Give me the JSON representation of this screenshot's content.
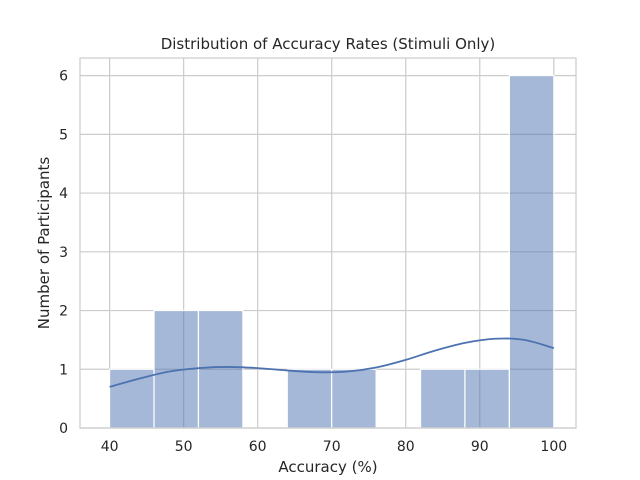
{
  "chart_data": {
    "type": "bar",
    "title": "Distribution of Accuracy Rates (Stimuli Only)",
    "xlabel": "Accuracy (%)",
    "ylabel": "Number of Participants",
    "xlim": [
      36,
      103
    ],
    "ylim": [
      0,
      6.3
    ],
    "xticks": [
      "40",
      "50",
      "60",
      "70",
      "80",
      "90",
      "100"
    ],
    "yticks": [
      "0",
      "1",
      "2",
      "3",
      "4",
      "5",
      "6"
    ],
    "grid": true,
    "bar_color": "#4c72b0",
    "kde_color": "#4c72b0",
    "histogram": {
      "bin_edges": [
        40,
        46,
        52,
        58,
        64,
        70,
        76,
        82,
        88,
        94,
        100
      ],
      "counts": [
        1,
        2,
        2,
        0,
        1,
        1,
        0,
        1,
        1,
        6
      ]
    },
    "kde": {
      "x": [
        40,
        44,
        48,
        52,
        56,
        60,
        64,
        68,
        72,
        76,
        80,
        84,
        88,
        92,
        96,
        100
      ],
      "y": [
        0.7,
        0.84,
        0.96,
        1.02,
        1.04,
        1.02,
        0.98,
        0.95,
        0.96,
        1.03,
        1.16,
        1.32,
        1.45,
        1.52,
        1.5,
        1.36
      ]
    }
  }
}
